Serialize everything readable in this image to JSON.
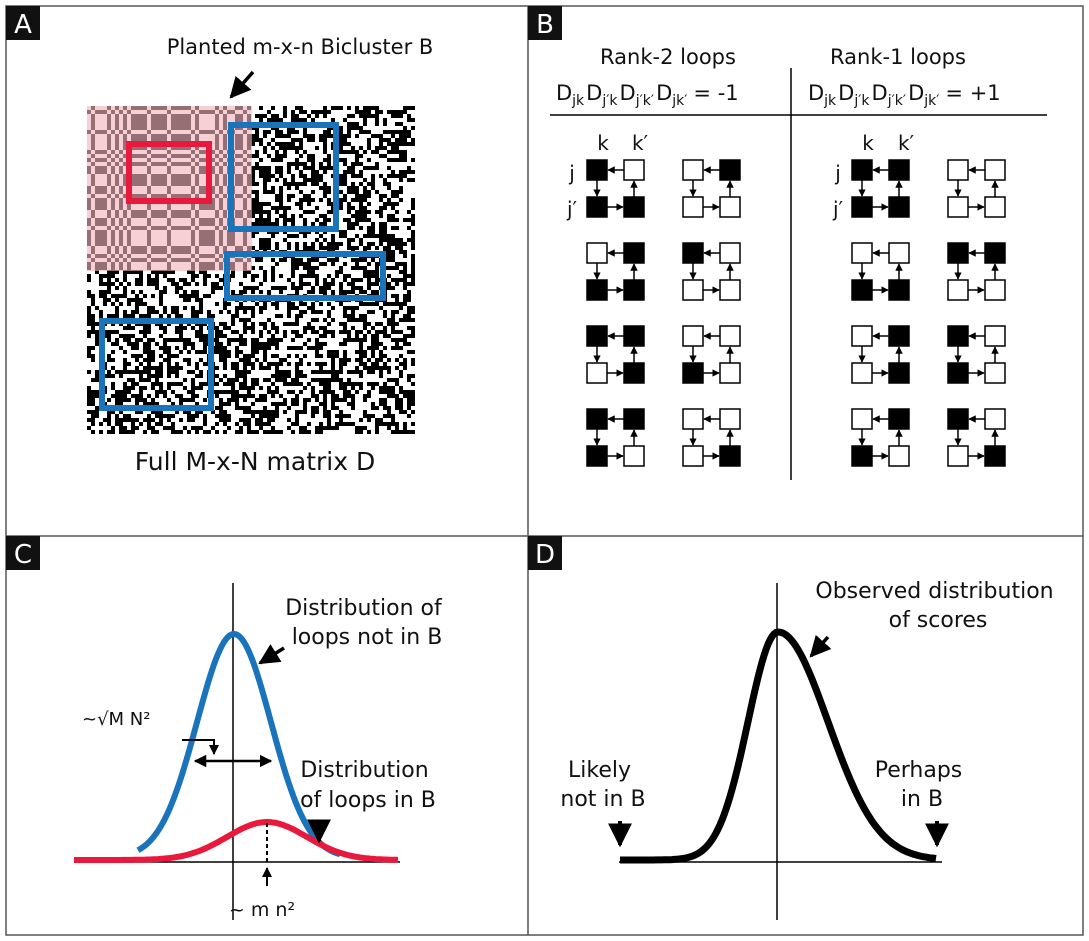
{
  "panels": {
    "A": {
      "letter": "A",
      "planted_label": "Planted m-x-n Bicluster B",
      "matrix_label": "Full M-x-N matrix D"
    },
    "B": {
      "letter": "B",
      "rank2_title": "Rank-2 loops",
      "rank1_title": "Rank-1 loops",
      "rank2_eq": {
        "lhs": [
          "D",
          "jk",
          "D",
          "j′k",
          "D",
          "j′k′",
          "D",
          "jk′"
        ],
        "rhs": "= -1"
      },
      "rank1_eq": {
        "lhs": [
          "D",
          "jk",
          "D",
          "j′k",
          "D",
          "j′k′",
          "D",
          "jk′"
        ],
        "rhs": "= +1"
      },
      "col_k": "k",
      "col_k2": "k′",
      "row_j": "j",
      "row_j2": "j′",
      "rank2_patterns": [
        [
          [
            1,
            0,
            1,
            1
          ],
          [
            0,
            1,
            0,
            0
          ]
        ],
        [
          [
            0,
            1,
            1,
            1
          ],
          [
            1,
            0,
            0,
            0
          ]
        ],
        [
          [
            1,
            1,
            0,
            1
          ],
          [
            0,
            0,
            1,
            0
          ]
        ],
        [
          [
            1,
            1,
            1,
            0
          ],
          [
            0,
            0,
            0,
            1
          ]
        ]
      ],
      "rank1_patterns": [
        [
          [
            1,
            1,
            1,
            1
          ],
          [
            0,
            0,
            0,
            0
          ]
        ],
        [
          [
            0,
            0,
            1,
            1
          ],
          [
            1,
            1,
            0,
            0
          ]
        ],
        [
          [
            0,
            1,
            0,
            1
          ],
          [
            1,
            0,
            1,
            0
          ]
        ],
        [
          [
            0,
            1,
            1,
            0
          ],
          [
            1,
            0,
            0,
            1
          ]
        ]
      ]
    },
    "C": {
      "letter": "C",
      "dist_not_b": [
        "Distribution of",
        "loops not in B"
      ],
      "width_label": "~√M N²",
      "dist_b": [
        "Distribution",
        "of loops in B"
      ],
      "mean_label": "~ m n²"
    },
    "D": {
      "letter": "D",
      "observed": [
        "Observed distribution",
        "of scores"
      ],
      "likely_not": [
        "Likely",
        "not in B"
      ],
      "perhaps": [
        "Perhaps",
        "in B"
      ]
    }
  },
  "colors": {
    "blue": "#1a74bb",
    "red": "#e8193c",
    "pink": "#f2b3bd",
    "black": "#000000",
    "frame": "#555555"
  }
}
